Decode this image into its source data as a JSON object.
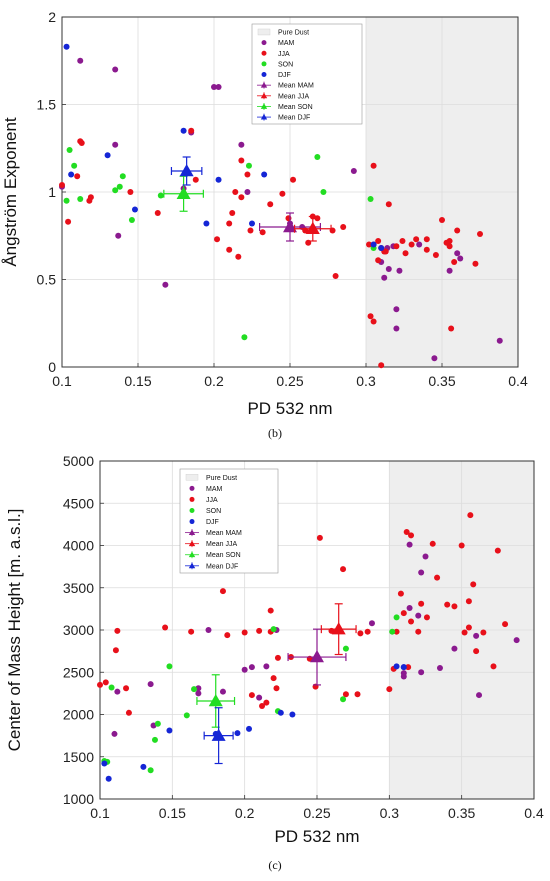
{
  "colors": {
    "MAM": "#8B1A8F",
    "JJA": "#E8101A",
    "SON": "#22DD22",
    "DJF": "#1526D6",
    "shade": "#EEEEEE"
  },
  "chart_data": [
    {
      "type": "scatter",
      "panel_label": "(b)",
      "xlabel": "PD 532 nm",
      "ylabel": "Ångström Exponent",
      "xlim": [
        0.1,
        0.4
      ],
      "ylim": [
        0,
        2
      ],
      "xticks": [
        "0.1",
        "0.15",
        "0.2",
        "0.25",
        "0.3",
        "0.35",
        "0.4"
      ],
      "yticks": [
        "0",
        "0.5",
        "1",
        "1.5",
        "2"
      ],
      "shaded_region": {
        "label": "Pure Dust",
        "x": [
          0.3,
          0.4
        ]
      },
      "grid": true,
      "legend_position": "top-center",
      "series": [
        {
          "name": "MAM",
          "points": [
            [
              0.1,
              1.03
            ],
            [
              0.112,
              1.75
            ],
            [
              0.135,
              1.7
            ],
            [
              0.135,
              1.27
            ],
            [
              0.137,
              0.75
            ],
            [
              0.168,
              0.47
            ],
            [
              0.18,
              1.02
            ],
            [
              0.185,
              1.34
            ],
            [
              0.2,
              1.6
            ],
            [
              0.203,
              1.6
            ],
            [
              0.218,
              1.27
            ],
            [
              0.222,
              1.0
            ],
            [
              0.25,
              0.8
            ],
            [
              0.25,
              0.82
            ],
            [
              0.258,
              0.8
            ],
            [
              0.292,
              1.12
            ],
            [
              0.31,
              0.6
            ],
            [
              0.312,
              0.51
            ],
            [
              0.314,
              0.68
            ],
            [
              0.315,
              0.56
            ],
            [
              0.318,
              0.69
            ],
            [
              0.32,
              0.33
            ],
            [
              0.32,
              0.22
            ],
            [
              0.322,
              0.55
            ],
            [
              0.335,
              0.7
            ],
            [
              0.345,
              0.05
            ],
            [
              0.355,
              0.55
            ],
            [
              0.36,
              0.65
            ],
            [
              0.362,
              0.62
            ],
            [
              0.388,
              0.15
            ]
          ]
        },
        {
          "name": "JJA",
          "points": [
            [
              0.1,
              1.04
            ],
            [
              0.104,
              0.83
            ],
            [
              0.11,
              1.09
            ],
            [
              0.112,
              1.29
            ],
            [
              0.113,
              1.28
            ],
            [
              0.118,
              0.95
            ],
            [
              0.119,
              0.97
            ],
            [
              0.145,
              1.0
            ],
            [
              0.163,
              0.88
            ],
            [
              0.185,
              1.35
            ],
            [
              0.188,
              1.07
            ],
            [
              0.202,
              0.73
            ],
            [
              0.21,
              0.82
            ],
            [
              0.21,
              0.67
            ],
            [
              0.212,
              0.88
            ],
            [
              0.214,
              1.0
            ],
            [
              0.216,
              0.63
            ],
            [
              0.218,
              1.18
            ],
            [
              0.218,
              0.97
            ],
            [
              0.222,
              1.1
            ],
            [
              0.224,
              0.78
            ],
            [
              0.232,
              0.77
            ],
            [
              0.237,
              0.93
            ],
            [
              0.245,
              0.99
            ],
            [
              0.249,
              0.85
            ],
            [
              0.252,
              1.07
            ],
            [
              0.26,
              0.78
            ],
            [
              0.262,
              0.71
            ],
            [
              0.265,
              0.86
            ],
            [
              0.268,
              0.85
            ],
            [
              0.278,
              0.78
            ],
            [
              0.28,
              0.52
            ],
            [
              0.285,
              0.8
            ],
            [
              0.302,
              0.7
            ],
            [
              0.303,
              0.29
            ],
            [
              0.305,
              1.15
            ],
            [
              0.305,
              0.7
            ],
            [
              0.305,
              0.26
            ],
            [
              0.308,
              0.61
            ],
            [
              0.308,
              0.72
            ],
            [
              0.31,
              0.01
            ],
            [
              0.31,
              0.68
            ],
            [
              0.312,
              0.66
            ],
            [
              0.313,
              0.66
            ],
            [
              0.315,
              0.93
            ],
            [
              0.32,
              0.69
            ],
            [
              0.324,
              0.72
            ],
            [
              0.326,
              0.65
            ],
            [
              0.33,
              0.7
            ],
            [
              0.333,
              0.73
            ],
            [
              0.34,
              0.73
            ],
            [
              0.34,
              0.67
            ],
            [
              0.346,
              0.64
            ],
            [
              0.35,
              0.84
            ],
            [
              0.353,
              0.71
            ],
            [
              0.355,
              0.69
            ],
            [
              0.355,
              0.72
            ],
            [
              0.356,
              0.22
            ],
            [
              0.358,
              0.6
            ],
            [
              0.36,
              0.78
            ],
            [
              0.372,
              0.59
            ],
            [
              0.375,
              0.76
            ]
          ]
        },
        {
          "name": "SON",
          "points": [
            [
              0.103,
              0.95
            ],
            [
              0.105,
              1.24
            ],
            [
              0.108,
              1.15
            ],
            [
              0.112,
              0.96
            ],
            [
              0.135,
              1.01
            ],
            [
              0.138,
              1.03
            ],
            [
              0.14,
              1.09
            ],
            [
              0.146,
              0.84
            ],
            [
              0.165,
              0.98
            ],
            [
              0.22,
              0.17
            ],
            [
              0.223,
              1.15
            ],
            [
              0.268,
              1.2
            ],
            [
              0.272,
              1.0
            ],
            [
              0.303,
              0.96
            ],
            [
              0.305,
              0.68
            ]
          ]
        },
        {
          "name": "DJF",
          "points": [
            [
              0.103,
              1.83
            ],
            [
              0.106,
              1.1
            ],
            [
              0.13,
              1.21
            ],
            [
              0.148,
              0.9
            ],
            [
              0.18,
              1.35
            ],
            [
              0.195,
              0.82
            ],
            [
              0.203,
              1.07
            ],
            [
              0.225,
              0.82
            ],
            [
              0.233,
              1.1
            ],
            [
              0.305,
              0.7
            ],
            [
              0.31,
              0.68
            ]
          ]
        }
      ],
      "means": [
        {
          "name": "Mean MAM",
          "x": 0.25,
          "y": 0.8,
          "xerr": 0.02,
          "yerr": 0.08
        },
        {
          "name": "Mean JJA",
          "x": 0.265,
          "y": 0.79,
          "xerr": 0.012,
          "yerr": 0.07
        },
        {
          "name": "Mean SON",
          "x": 0.18,
          "y": 0.99,
          "xerr": 0.013,
          "yerr": 0.1
        },
        {
          "name": "Mean DJF",
          "x": 0.182,
          "y": 1.12,
          "xerr": 0.01,
          "yerr": 0.08
        }
      ]
    },
    {
      "type": "scatter",
      "panel_label": "(c)",
      "xlabel": "PD 532 nm",
      "ylabel": "Center of Mass Height [m. a.s.l.]",
      "xlim": [
        0.1,
        0.4
      ],
      "ylim": [
        1000,
        5000
      ],
      "xticks": [
        "0.1",
        "0.15",
        "0.2",
        "0.25",
        "0.3",
        "0.35",
        "0.4"
      ],
      "yticks": [
        "1000",
        "1500",
        "2000",
        "2500",
        "3000",
        "3500",
        "4000",
        "4500",
        "5000"
      ],
      "shaded_region": {
        "label": "Pure Dust",
        "x": [
          0.3,
          0.4
        ]
      },
      "grid": true,
      "legend_position": "top-left",
      "series": [
        {
          "name": "MAM",
          "points": [
            [
              0.11,
              1770
            ],
            [
              0.112,
              2270
            ],
            [
              0.135,
              2360
            ],
            [
              0.137,
              1870
            ],
            [
              0.168,
              2250
            ],
            [
              0.168,
              2310
            ],
            [
              0.175,
              3000
            ],
            [
              0.185,
              2270
            ],
            [
              0.2,
              2530
            ],
            [
              0.205,
              2560
            ],
            [
              0.21,
              2200
            ],
            [
              0.215,
              2570
            ],
            [
              0.222,
              3000
            ],
            [
              0.25,
              2680
            ],
            [
              0.288,
              3080
            ],
            [
              0.31,
              2490
            ],
            [
              0.31,
              2450
            ],
            [
              0.31,
              2560
            ],
            [
              0.314,
              3260
            ],
            [
              0.314,
              4010
            ],
            [
              0.32,
              3170
            ],
            [
              0.322,
              2500
            ],
            [
              0.322,
              3680
            ],
            [
              0.325,
              3870
            ],
            [
              0.335,
              2550
            ],
            [
              0.345,
              2780
            ],
            [
              0.36,
              2930
            ],
            [
              0.362,
              2230
            ],
            [
              0.388,
              2880
            ]
          ]
        },
        {
          "name": "JJA",
          "points": [
            [
              0.1,
              2350
            ],
            [
              0.104,
              2380
            ],
            [
              0.111,
              2760
            ],
            [
              0.112,
              2990
            ],
            [
              0.118,
              2310
            ],
            [
              0.12,
              2020
            ],
            [
              0.145,
              3030
            ],
            [
              0.163,
              2980
            ],
            [
              0.185,
              3460
            ],
            [
              0.188,
              2940
            ],
            [
              0.2,
              2970
            ],
            [
              0.205,
              2230
            ],
            [
              0.21,
              2990
            ],
            [
              0.212,
              2100
            ],
            [
              0.215,
              2140
            ],
            [
              0.218,
              3230
            ],
            [
              0.218,
              2980
            ],
            [
              0.22,
              2430
            ],
            [
              0.222,
              2310
            ],
            [
              0.223,
              2670
            ],
            [
              0.232,
              2680
            ],
            [
              0.245,
              2660
            ],
            [
              0.249,
              2330
            ],
            [
              0.252,
              4090
            ],
            [
              0.26,
              2990
            ],
            [
              0.265,
              3010
            ],
            [
              0.268,
              3720
            ],
            [
              0.27,
              2240
            ],
            [
              0.278,
              2240
            ],
            [
              0.28,
              2960
            ],
            [
              0.285,
              2980
            ],
            [
              0.3,
              2300
            ],
            [
              0.303,
              2540
            ],
            [
              0.305,
              2980
            ],
            [
              0.308,
              3430
            ],
            [
              0.31,
              3200
            ],
            [
              0.312,
              4160
            ],
            [
              0.313,
              2560
            ],
            [
              0.315,
              3100
            ],
            [
              0.315,
              4120
            ],
            [
              0.32,
              2980
            ],
            [
              0.322,
              3310
            ],
            [
              0.326,
              3150
            ],
            [
              0.33,
              4020
            ],
            [
              0.333,
              3620
            ],
            [
              0.34,
              3300
            ],
            [
              0.345,
              3280
            ],
            [
              0.35,
              4000
            ],
            [
              0.352,
              2970
            ],
            [
              0.355,
              3030
            ],
            [
              0.355,
              3340
            ],
            [
              0.356,
              4360
            ],
            [
              0.358,
              3540
            ],
            [
              0.36,
              2750
            ],
            [
              0.365,
              2970
            ],
            [
              0.372,
              2570
            ],
            [
              0.375,
              3940
            ],
            [
              0.38,
              3070
            ]
          ]
        },
        {
          "name": "SON",
          "points": [
            [
              0.103,
              1450
            ],
            [
              0.105,
              1440
            ],
            [
              0.108,
              2320
            ],
            [
              0.135,
              1340
            ],
            [
              0.138,
              1700
            ],
            [
              0.14,
              1890
            ],
            [
              0.148,
              2570
            ],
            [
              0.16,
              1990
            ],
            [
              0.165,
              2300
            ],
            [
              0.22,
              3010
            ],
            [
              0.223,
              2040
            ],
            [
              0.268,
              2180
            ],
            [
              0.27,
              2780
            ],
            [
              0.302,
              2980
            ],
            [
              0.305,
              3150
            ]
          ]
        },
        {
          "name": "DJF",
          "points": [
            [
              0.103,
              1420
            ],
            [
              0.106,
              1240
            ],
            [
              0.13,
              1380
            ],
            [
              0.148,
              1810
            ],
            [
              0.18,
              1770
            ],
            [
              0.195,
              1780
            ],
            [
              0.203,
              1830
            ],
            [
              0.225,
              2020
            ],
            [
              0.233,
              2000
            ],
            [
              0.305,
              2570
            ],
            [
              0.31,
              2560
            ]
          ]
        }
      ],
      "means": [
        {
          "name": "Mean MAM",
          "x": 0.25,
          "y": 2680,
          "xerr": 0.02,
          "yerr": 330
        },
        {
          "name": "Mean JJA",
          "x": 0.265,
          "y": 3010,
          "xerr": 0.012,
          "yerr": 300
        },
        {
          "name": "Mean SON",
          "x": 0.18,
          "y": 2160,
          "xerr": 0.013,
          "yerr": 310
        },
        {
          "name": "Mean DJF",
          "x": 0.182,
          "y": 1750,
          "xerr": 0.01,
          "yerr": 330
        }
      ]
    }
  ]
}
